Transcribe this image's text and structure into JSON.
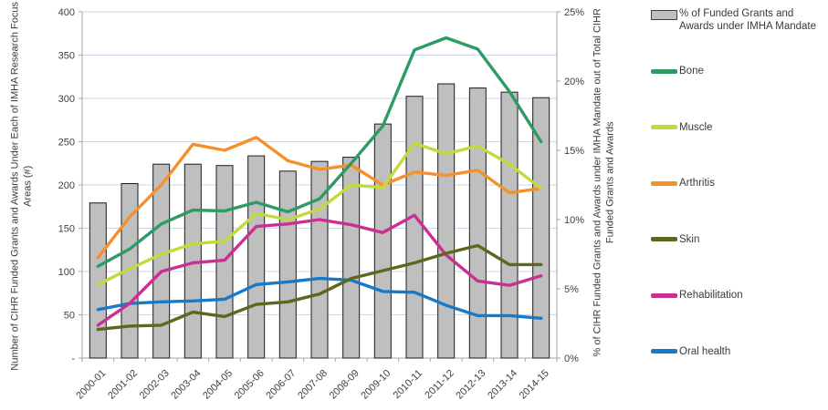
{
  "chart_data": {
    "type": "combo bar+line",
    "categories": [
      "2000-01",
      "2001-02",
      "2002-03",
      "2003-04",
      "2004-05",
      "2005-06",
      "2006-07",
      "2007-08",
      "2008-09",
      "2009-10",
      "2010-11",
      "2011-12",
      "2012-13",
      "2013-14",
      "2014-15"
    ],
    "bar_series": {
      "name": "% of Funded Grants and Awards under IMHA Mandate",
      "axis": "right",
      "unit": "%",
      "values": [
        11.2,
        12.6,
        14.0,
        14.0,
        13.9,
        14.6,
        13.5,
        14.2,
        14.5,
        16.9,
        18.9,
        19.8,
        19.5,
        19.2,
        18.8
      ]
    },
    "series": [
      {
        "name": "Bone",
        "color": "#2d9b63",
        "axis": "left",
        "values": [
          106,
          126,
          155,
          171,
          170,
          180,
          169,
          184,
          225,
          268,
          356,
          370,
          357,
          308,
          250
        ]
      },
      {
        "name": "Muscle",
        "color": "#c3da3b",
        "axis": "left",
        "values": [
          85,
          103,
          120,
          132,
          135,
          167,
          160,
          172,
          200,
          197,
          248,
          236,
          245,
          224,
          196
        ]
      },
      {
        "name": "Arthritis",
        "color": "#f5902d",
        "axis": "left",
        "values": [
          116,
          163,
          200,
          247,
          240,
          255,
          228,
          218,
          223,
          200,
          215,
          211,
          217,
          191,
          196
        ]
      },
      {
        "name": "Skin",
        "color": "#5f661e",
        "axis": "left",
        "values": [
          33,
          37,
          38,
          53,
          48,
          62,
          65,
          74,
          92,
          101,
          110,
          121,
          130,
          108,
          108
        ]
      },
      {
        "name": "Rehabilitation",
        "color": "#ca3093",
        "axis": "left",
        "values": [
          38,
          63,
          100,
          110,
          113,
          152,
          155,
          160,
          154,
          145,
          165,
          119,
          89,
          84,
          95
        ]
      },
      {
        "name": "Oral health",
        "color": "#1779c9",
        "axis": "left",
        "values": [
          56,
          63,
          65,
          66,
          68,
          85,
          88,
          92,
          90,
          77,
          76,
          61,
          49,
          49,
          46
        ]
      }
    ],
    "left_axis": {
      "label": "Number of CIHR Funded Grants and Awards Under Each of IMHA Research Focus Areas (#)",
      "min": 0,
      "max": 400,
      "step": 50,
      "zero_label": "-"
    },
    "right_axis": {
      "label": "% of CIHR Funded Grants and Awards under IMHA Mandate out of Total CIHR Funded Grants and Awards",
      "min": 0,
      "max": 25,
      "step": 5,
      "tick_suffix": "%"
    },
    "grid": true,
    "legend_position": "right",
    "colors": {
      "bar_fill": "#bfbfbf",
      "bar_border": "#1a1a1a",
      "gridline": "#cbd7ee",
      "axis_line": "#a6a6a6",
      "tick_text": "#404040"
    }
  }
}
